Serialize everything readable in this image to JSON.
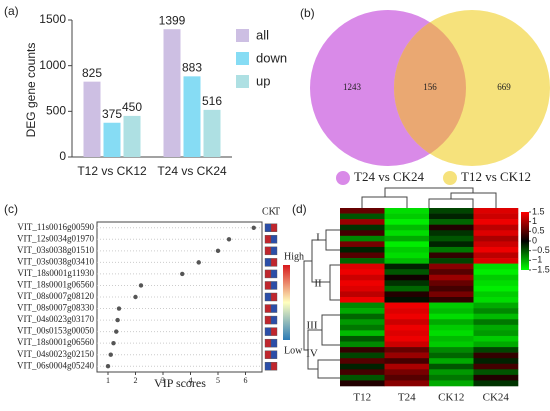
{
  "chart_data": [
    {
      "type": "bar",
      "panel": "(a)",
      "ylabel": "DEG  gene counts",
      "categories": [
        "T12 vs CK12",
        "T24 vs CK24"
      ],
      "series": [
        {
          "name": "all",
          "color": "#cdbfe3",
          "values": [
            825,
            1399
          ]
        },
        {
          "name": "down",
          "color": "#86dcf4",
          "values": [
            375,
            883
          ]
        },
        {
          "name": "up",
          "color": "#aee0e3",
          "values": [
            450,
            516
          ]
        }
      ],
      "ylim": [
        0,
        1500
      ],
      "yticks": [
        0,
        500,
        1000,
        1500
      ],
      "legend": "upper right"
    },
    {
      "type": "venn",
      "panel": "(b)",
      "sets": [
        {
          "name": "T24 vs CK24",
          "color": "#d98ae8",
          "value": 1243
        },
        {
          "name": "T12 vs CK12",
          "color": "#f6e27c",
          "value": 669
        }
      ],
      "overlap": 156,
      "overlap_color": "#eaa872"
    },
    {
      "type": "scatter",
      "panel": "(c)",
      "xlabel": "VIP scores",
      "categories": [
        "VIT_11s0016g00590",
        "VIT_12s0034g01970",
        "VIT_03s0038g01510",
        "VIT_03s0038g03410",
        "VIT_18s0001g11930",
        "VIT_18s0001g06560",
        "VIT_08s0007g08120",
        "VIT_08s0007g08330",
        "VIT_04s0023g03170",
        "VIT_00s0153g00050",
        "VIT_18s0001g06560",
        "VIT_04s0023g02150",
        "VIT_06s0004g05240"
      ],
      "values": [
        6.3,
        5.4,
        5.0,
        4.3,
        3.7,
        2.2,
        2.0,
        1.4,
        1.35,
        1.3,
        1.2,
        1.1,
        1.0
      ],
      "xlim": [
        0.6,
        6.6
      ],
      "xticks": [
        1,
        2,
        3,
        4,
        5,
        6
      ],
      "columns": [
        "CK",
        "T"
      ],
      "colorbar_labels": [
        "High",
        "Low"
      ]
    },
    {
      "type": "heatmap",
      "panel": "(d)",
      "columns": [
        "T12",
        "T24",
        "CK12",
        "CK24"
      ],
      "clusters": [
        "I",
        "II",
        "III",
        "IV"
      ],
      "matrix": [
        [
          0.6,
          -1.3,
          -0.4,
          1.3
        ],
        [
          -0.5,
          -1.2,
          -0.2,
          1.2
        ],
        [
          0.9,
          -1.4,
          -0.6,
          1.4
        ],
        [
          -0.3,
          -1.1,
          0.2,
          1.1
        ],
        [
          0.4,
          -1.3,
          -0.3,
          1.3
        ],
        [
          -0.8,
          -1.0,
          -0.5,
          1.0
        ],
        [
          0.7,
          -1.4,
          -0.2,
          1.2
        ],
        [
          -0.2,
          -1.2,
          -0.7,
          1.4
        ],
        [
          0.5,
          -1.3,
          0.3,
          1.1
        ],
        [
          -0.6,
          -1.1,
          -0.4,
          1.3
        ],
        [
          1.3,
          -0.2,
          0.8,
          -1.3
        ],
        [
          1.4,
          -0.5,
          0.5,
          -1.4
        ],
        [
          1.2,
          0.1,
          0.9,
          -1.2
        ],
        [
          1.4,
          -0.3,
          0.6,
          -1.3
        ],
        [
          1.3,
          -0.6,
          0.4,
          -1.4
        ],
        [
          1.1,
          0.2,
          0.7,
          -1.2
        ],
        [
          1.4,
          -0.1,
          0.3,
          -1.3
        ],
        [
          -0.8,
          1.4,
          -1.2,
          -1.0
        ],
        [
          -1.0,
          1.3,
          -1.1,
          -0.8
        ],
        [
          -0.6,
          1.4,
          -1.3,
          -1.1
        ],
        [
          -0.9,
          1.2,
          -1.0,
          -0.7
        ],
        [
          -0.7,
          1.4,
          -1.2,
          -1.0
        ],
        [
          -1.1,
          1.3,
          -1.3,
          -0.9
        ],
        [
          -0.5,
          1.4,
          -1.1,
          -1.2
        ],
        [
          -0.8,
          1.2,
          -1.2,
          -1.0
        ],
        [
          0.3,
          0.6,
          -0.8,
          -0.4
        ],
        [
          -0.4,
          0.9,
          -0.6,
          0.3
        ],
        [
          0.5,
          0.4,
          -1.0,
          -0.2
        ],
        [
          -0.2,
          1.0,
          -0.5,
          0.4
        ],
        [
          0.4,
          0.7,
          -0.9,
          -0.5
        ],
        [
          -0.5,
          0.5,
          -0.7,
          0.2
        ],
        [
          0.2,
          0.8,
          -1.0,
          -0.3
        ]
      ],
      "colorbar_ticks": [
        1.5,
        1,
        0.5,
        0,
        {
          "value": -0.5,
          "label": "−0.5"
        },
        {
          "value": -1,
          "label": "−1"
        },
        {
          "value": -1.5,
          "label": "−1.5"
        }
      ]
    }
  ]
}
